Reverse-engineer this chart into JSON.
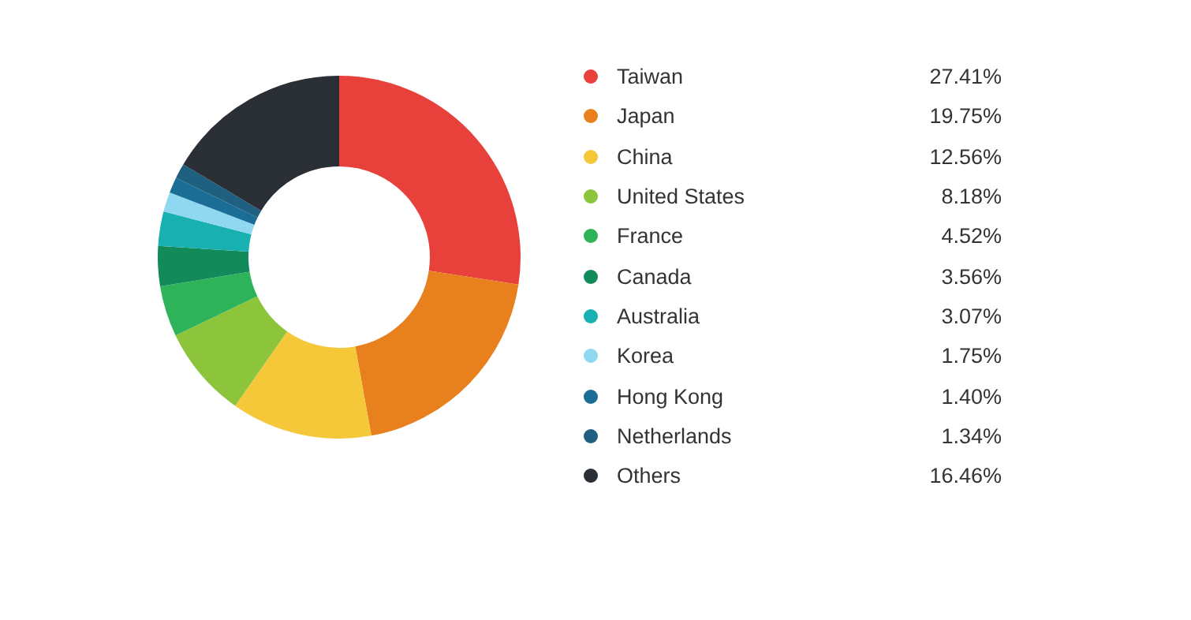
{
  "chart_data": {
    "type": "donut",
    "categories": [
      "Taiwan",
      "Japan",
      "China",
      "United States",
      "France",
      "Canada",
      "Australia",
      "Korea",
      "Hong Kong",
      "Netherlands",
      "Others"
    ],
    "values": [
      27.41,
      19.75,
      12.56,
      8.18,
      4.52,
      3.56,
      3.07,
      1.75,
      1.4,
      1.34,
      16.46
    ],
    "value_labels": [
      "27.41%",
      "19.75%",
      "12.56%",
      "8.18%",
      "4.52%",
      "3.56%",
      "3.07%",
      "1.75%",
      "1.40%",
      "1.34%",
      "16.46%"
    ],
    "colors": [
      "#e8403a",
      "#e8801e",
      "#f5c83a",
      "#8cc43c",
      "#2eb35a",
      "#128a5a",
      "#18b0b0",
      "#90d8f0",
      "#1a6e96",
      "#1f5f80",
      "#2a2e35"
    ],
    "legend": "right"
  }
}
